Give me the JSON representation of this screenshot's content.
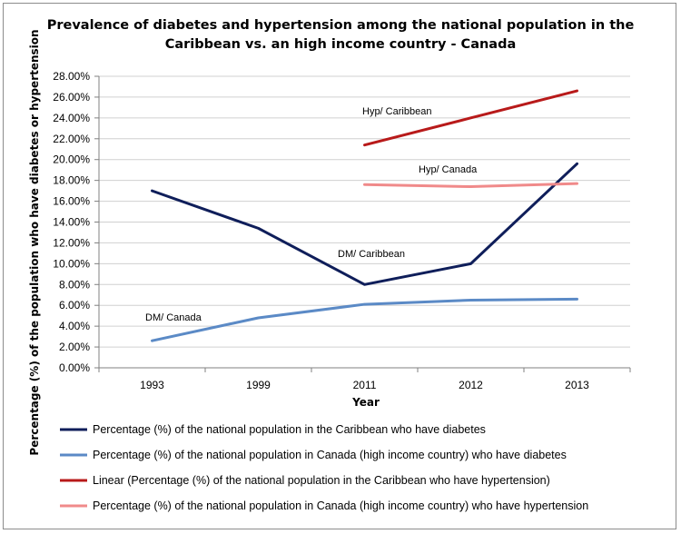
{
  "chart_data": {
    "type": "line",
    "title_line1": "Prevalence of diabetes and hypertension among the national population in the",
    "title_line2": "Caribbean vs. an high income country - Canada",
    "xlabel": "Year",
    "ylabel": "Percentage (%) of the population who have diabetes or hypertension",
    "categories": [
      "1993",
      "1999",
      "2011",
      "2012",
      "2013"
    ],
    "ylim": [
      0,
      28
    ],
    "yticks": [
      0,
      2,
      4,
      6,
      8,
      10,
      12,
      14,
      16,
      18,
      20,
      22,
      24,
      26,
      28
    ],
    "ytick_labels": [
      "0.00%",
      "2.00%",
      "4.00%",
      "6.00%",
      "8.00%",
      "10.00%",
      "12.00%",
      "14.00%",
      "16.00%",
      "18.00%",
      "20.00%",
      "22.00%",
      "24.00%",
      "26.00%",
      "28.00%"
    ],
    "grid": true,
    "legend_position": "bottom",
    "series": [
      {
        "name": "Percentage (%) of the national population in the Caribbean who have diabetes",
        "values": [
          17.0,
          13.4,
          8.0,
          10.0,
          19.6
        ],
        "color": "#0f1e5a"
      },
      {
        "name": "Percentage (%) of the national population in Canada (high income country) who have diabetes",
        "values": [
          2.6,
          4.8,
          6.1,
          6.5,
          6.6
        ],
        "color": "#5b8ac6"
      },
      {
        "name": "Linear (Percentage (%) of the national population in the Caribbean who have hypertension)",
        "values": [
          null,
          null,
          21.4,
          24.0,
          26.6
        ],
        "color": "#b81a1a"
      },
      {
        "name": "Percentage (%) of the national population in Canada (high income country) who have hypertension",
        "values": [
          null,
          null,
          17.6,
          17.4,
          17.7
        ],
        "color": "#f08a8a"
      }
    ],
    "annotations": [
      {
        "text": "Hyp/ Caribbean",
        "x": "1993",
        "y": 0
      },
      {
        "text": "Hyp/ Canada",
        "x": "1993",
        "y": 0
      },
      {
        "text": "DM/ Caribbean",
        "x": "1993",
        "y": 0
      },
      {
        "text": "DM/ Canada",
        "x": "1993",
        "y": 0
      }
    ]
  }
}
